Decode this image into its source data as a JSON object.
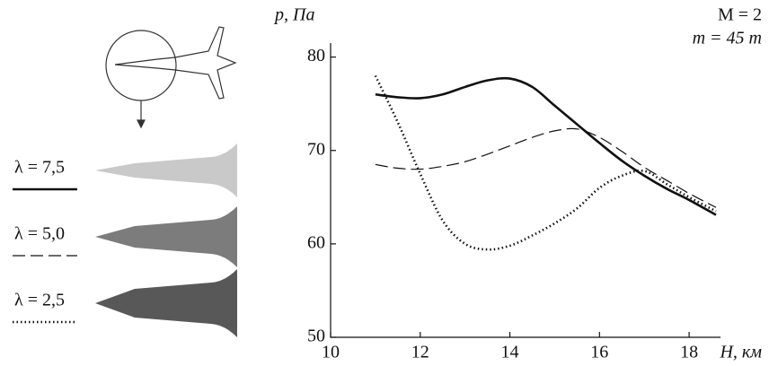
{
  "chart_data": {
    "type": "line",
    "y_label": "p, Па",
    "x_label": "H, км",
    "annotations": [
      "M = 2",
      "m = 45 т"
    ],
    "x": [
      11,
      11.5,
      12,
      12.5,
      13,
      13.5,
      14,
      14.5,
      15,
      15.5,
      16,
      16.5,
      17,
      17.5,
      18,
      18.6
    ],
    "series": [
      {
        "name": "λ = 7,5",
        "color": "#111111",
        "line_style": "solid",
        "shade": "#c9c9c9",
        "values": [
          76,
          75.7,
          75.6,
          76,
          76.8,
          77.5,
          77.7,
          76.8,
          74.8,
          72.8,
          70.8,
          68.9,
          67.3,
          65.9,
          64.7,
          63.1
        ]
      },
      {
        "name": "λ = 5,0",
        "color": "#111111",
        "line_style": "dashed",
        "shade": "#7c7c7c",
        "values": [
          68.5,
          68.1,
          68,
          68.3,
          68.8,
          69.6,
          70.5,
          71.4,
          72.1,
          72.3,
          71.4,
          69.9,
          68.2,
          66.8,
          65.4,
          63.9
        ]
      },
      {
        "name": "λ = 2,5",
        "color": "#111111",
        "line_style": "dotted",
        "shade": "#585858",
        "values": [
          78,
          73,
          67.5,
          62.5,
          60,
          59.4,
          59.8,
          60.9,
          62.2,
          63.8,
          66,
          67.3,
          67.8,
          66.4,
          65,
          63.5
        ]
      }
    ],
    "xlim": [
      10,
      18.7
    ],
    "ylim": [
      50,
      81.5
    ],
    "xticks": [
      10,
      12,
      14,
      16,
      18
    ],
    "yticks": [
      50,
      60,
      70,
      80
    ]
  }
}
